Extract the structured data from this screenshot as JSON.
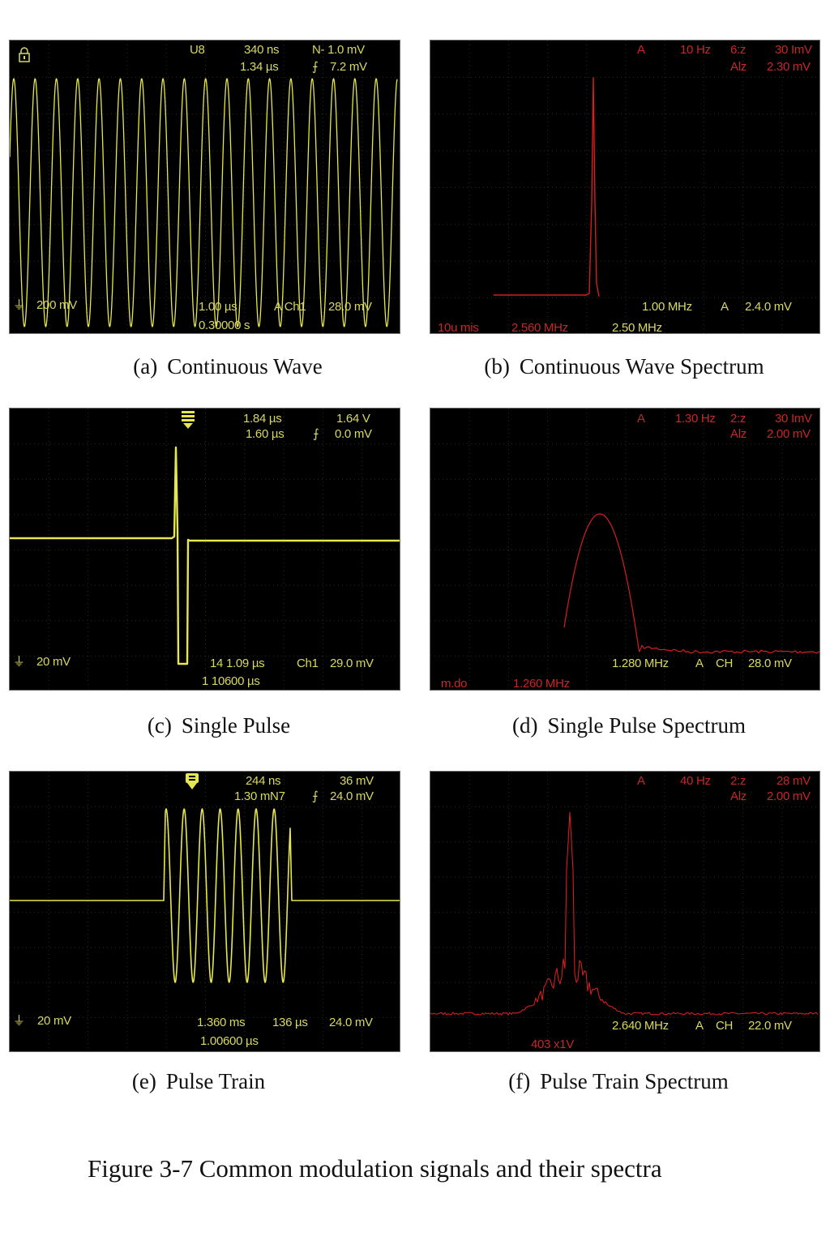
{
  "colors": {
    "trace_yellow": "#e6e64e",
    "trace_red": "#d02020",
    "grid": "#2a2a2a",
    "screen": "#000000"
  },
  "panels": {
    "a": {
      "icon": "lock-icon",
      "readouts": [
        "U8",
        "340 ns",
        "N- 1.0 mV",
        "1.34 µs",
        "7.2 mV",
        "200 mV",
        "1.00 µs",
        "A Ch1",
        "28.0 mV",
        "0.30000 s"
      ]
    },
    "b": {
      "readouts": [
        "A",
        "10 Hz",
        "6:z",
        "30 ImV",
        "Alz",
        "2.30 mV",
        "1.00 MHz",
        "A",
        "2.4.0 mV",
        "10u mis",
        "2.560 MHz",
        "2.50 MHz"
      ]
    },
    "c": {
      "icon": "trigger-marker-icon",
      "readouts": [
        "1.84 µs",
        "1.64 V",
        "1.60 µs",
        "0.0 mV",
        "20 mV",
        "14 1.09 µs",
        "Ch1",
        "29.0 mV",
        "1 10600 µs"
      ]
    },
    "d": {
      "readouts": [
        "A",
        "1.30 Hz",
        "2:z",
        "30 ImV",
        "Alz",
        "2.00 mV",
        "1.280 MHz",
        "A",
        "CH",
        "28.0 mV",
        "m.do",
        "1.260 MHz"
      ]
    },
    "e": {
      "icon": "trigger-marker-icon",
      "readouts": [
        "244 ns",
        "36 mV",
        "1.30 mN7",
        "24.0 mV",
        "20 mV",
        "1.360 ms",
        "136 µs",
        "24.0 mV",
        "1.00600 µs"
      ]
    },
    "f": {
      "readouts": [
        "A",
        "40 Hz",
        "2:z",
        "28 mV",
        "Alz",
        "2.00 mV",
        "2.640 MHz",
        "A",
        "CH",
        "22.0 mV",
        "403 x1V"
      ]
    }
  },
  "captions": [
    {
      "label": "(a)",
      "text": "Continuous Wave"
    },
    {
      "label": "(b)",
      "text": "Continuous Wave Spectrum"
    },
    {
      "label": "(c)",
      "text": "Single Pulse"
    },
    {
      "label": "(d)",
      "text": "Single Pulse Spectrum"
    },
    {
      "label": "(e)",
      "text": "Pulse Train"
    },
    {
      "label": "(f)",
      "text": "Pulse Train Spectrum"
    }
  ],
  "figure_caption": "Figure 3-7 Common modulation signals and their spectra"
}
